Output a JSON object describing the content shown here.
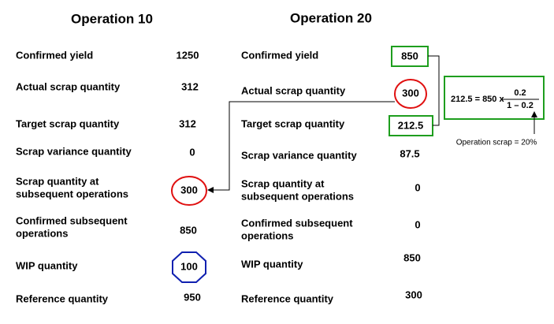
{
  "operations": [
    {
      "title": "Operation 10",
      "rows": [
        {
          "label": [
            "Confirmed yield"
          ],
          "value": 1250
        },
        {
          "label": [
            "Actual scrap quantity"
          ],
          "value": 312
        },
        {
          "label": [
            "Target scrap quantity"
          ],
          "value": 312
        },
        {
          "label": [
            "Scrap variance quantity"
          ],
          "value": 0
        },
        {
          "label": [
            "Scrap quantity at",
            "subsequent operations"
          ],
          "value": 300
        },
        {
          "label": [
            "Confirmed subsequent",
            "operations"
          ],
          "value": 850
        },
        {
          "label": [
            "WIP quantity"
          ],
          "value": 100
        },
        {
          "label": [
            "Reference quantity"
          ],
          "value": 950
        }
      ]
    },
    {
      "title": "Operation 20",
      "rows": [
        {
          "label": [
            "Confirmed yield"
          ],
          "value": 850
        },
        {
          "label": [
            "Actual scrap quantity"
          ],
          "value": 300
        },
        {
          "label": [
            "Target scrap quantity"
          ],
          "value": 212.5
        },
        {
          "label": [
            "Scrap variance quantity"
          ],
          "value": 87.5
        },
        {
          "label": [
            "Scrap quantity at",
            "subsequent operations"
          ],
          "value": 0
        },
        {
          "label": [
            "Confirmed subsequent",
            "operations"
          ],
          "value": 0
        },
        {
          "label": [
            "WIP quantity"
          ],
          "value": 850
        },
        {
          "label": [
            "Reference quantity"
          ],
          "value": 300
        }
      ]
    }
  ],
  "formula": {
    "lhs": "212.5 = 850 x",
    "numerator": "0.2",
    "denominator": "1 – 0.2"
  },
  "note": "Operation scrap = 20%"
}
